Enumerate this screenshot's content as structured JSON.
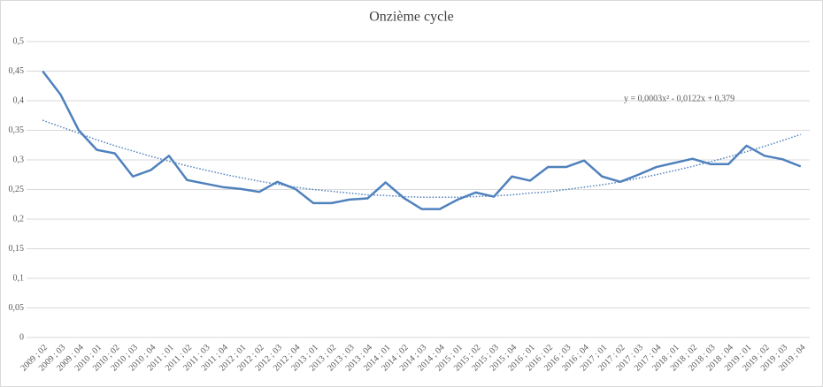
{
  "chart_data": {
    "type": "line",
    "title": "Onzième cycle",
    "categories": [
      "2009 ; 02",
      "2009 ; 03",
      "2009 ; 04",
      "2010 ; 01",
      "2010 ; 02",
      "2010 ; 03",
      "2010 ; 04",
      "2011 ; 01",
      "2011 ; 02",
      "2011 ; 03",
      "2011 ; 04",
      "2012 ; 01",
      "2012 ; 02",
      "2012 ; 03",
      "2012 ; 04",
      "2013 ; 01",
      "2013 ; 02",
      "2013 ; 03",
      "2013 ; 04",
      "2014 ; 01",
      "2014 ; 02",
      "2014 ; 03",
      "2014 ; 04",
      "2015 ; 01",
      "2015 ; 02",
      "2015 ; 03",
      "2015 ; 04",
      "2016 ; 01",
      "2016 ; 02",
      "2016 ; 03",
      "2016 ; 04",
      "2017 ; 01",
      "2017 ; 02",
      "2017 ; 03",
      "2017 ; 04",
      "2018 ; 01",
      "2018 ; 02",
      "2018 ; 03",
      "2018 ; 04",
      "2019 ; 01",
      "2019 ; 02",
      "2019 ; 03",
      "2019 ; 04"
    ],
    "values": [
      0.45,
      0.41,
      0.35,
      0.317,
      0.311,
      0.272,
      0.283,
      0.307,
      0.266,
      0.26,
      0.254,
      0.251,
      0.246,
      0.263,
      0.251,
      0.227,
      0.227,
      0.233,
      0.235,
      0.262,
      0.236,
      0.217,
      0.217,
      0.233,
      0.245,
      0.238,
      0.272,
      0.265,
      0.288,
      0.288,
      0.299,
      0.272,
      0.263,
      0.275,
      0.288,
      0.295,
      0.302,
      0.293,
      0.293,
      0.324,
      0.307,
      0.301,
      0.289
    ],
    "color": "#4f81bd",
    "trendline": {
      "values": [
        0.367,
        0.356,
        0.345,
        0.334,
        0.324,
        0.315,
        0.306,
        0.298,
        0.29,
        0.283,
        0.276,
        0.27,
        0.264,
        0.259,
        0.254,
        0.25,
        0.247,
        0.244,
        0.241,
        0.24,
        0.238,
        0.237,
        0.237,
        0.237,
        0.238,
        0.239,
        0.241,
        0.244,
        0.246,
        0.25,
        0.254,
        0.258,
        0.263,
        0.269,
        0.275,
        0.282,
        0.289,
        0.297,
        0.305,
        0.314,
        0.323,
        0.333,
        0.343
      ],
      "style": "dotted",
      "equation": "y = 0,0003x² - 0,0122x + 0,379"
    },
    "ylim": [
      0,
      0.5
    ],
    "yticks": [
      0,
      {
        "value": 0.05,
        "label": "0,05"
      },
      {
        "value": 0.1,
        "label": "0,1"
      },
      {
        "value": 0.15,
        "label": "0,15"
      },
      {
        "value": 0.2,
        "label": "0,2"
      },
      {
        "value": 0.25,
        "label": "0,25"
      },
      {
        "value": 0.3,
        "label": "0,3"
      },
      {
        "value": 0.35,
        "label": "0,35"
      },
      {
        "value": 0.4,
        "label": "0,4"
      },
      {
        "value": 0.45,
        "label": "0,45"
      },
      {
        "value": 0.5,
        "label": "0,5"
      }
    ],
    "grid": true
  }
}
